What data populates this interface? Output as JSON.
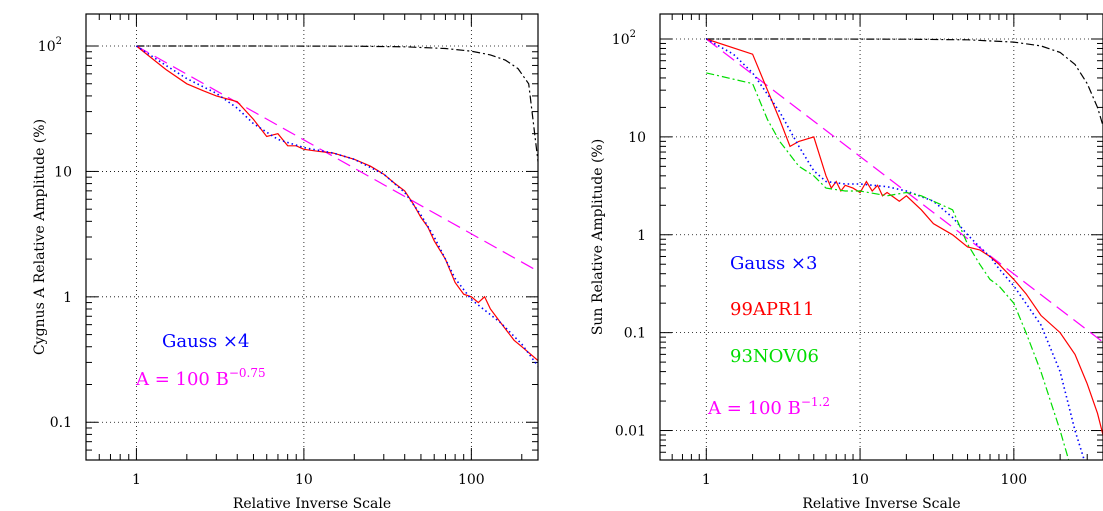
{
  "chart_data": [
    {
      "type": "line",
      "xlabel": "Relative Inverse Scale",
      "ylabel": "Cygnus A Relative Amplitude (%)",
      "xscale": "log",
      "yscale": "log",
      "xlim": [
        0.5,
        250
      ],
      "ylim": [
        0.05,
        180
      ],
      "grid": true,
      "xticks": [
        {
          "v": 1,
          "label": "1"
        },
        {
          "v": 10,
          "label": "10"
        },
        {
          "v": 100,
          "label": "100"
        }
      ],
      "yticks": [
        {
          "v": 0.1,
          "label": "0.1"
        },
        {
          "v": 1,
          "label": "1"
        },
        {
          "v": 10,
          "label": "10"
        },
        {
          "v": 100,
          "label": "10",
          "sup": "2"
        }
      ],
      "annotations": [
        {
          "name": "gauss-label",
          "text": "Gauss ×4",
          "color": "#0000ff"
        },
        {
          "name": "powerlaw-label",
          "text": "A = 100 B",
          "sup": "−0.75",
          "color": "#ff00ff"
        }
      ],
      "series": [
        {
          "style": "dash-dot",
          "color": "#000000",
          "x": [
            1,
            5,
            20,
            40,
            70,
            100,
            130,
            160,
            190,
            220,
            250
          ],
          "y": [
            100,
            100,
            99.6,
            98.5,
            95.5,
            91,
            85,
            77,
            66,
            50,
            12
          ]
        },
        {
          "style": "long-dash",
          "color": "#ff00ff",
          "x": [
            1,
            250
          ],
          "y": [
            100,
            1.6
          ]
        },
        {
          "style": "solid",
          "color": "#ff0000",
          "x": [
            1,
            1.5,
            2,
            2.5,
            3,
            4,
            5,
            6,
            7,
            8,
            9,
            10,
            12,
            15,
            20,
            25,
            30,
            35,
            40,
            45,
            50,
            55,
            60,
            70,
            80,
            90,
            100,
            110,
            120,
            130,
            150,
            180,
            200,
            250
          ],
          "y": [
            100,
            65,
            50,
            44,
            40,
            36,
            26,
            19,
            20,
            16,
            16,
            15,
            14.5,
            14,
            12.5,
            11,
            9.5,
            8,
            7,
            5.5,
            4.3,
            3.6,
            2.8,
            2,
            1.3,
            1.05,
            1.0,
            0.9,
            1.0,
            0.8,
            0.62,
            0.45,
            0.4,
            0.31
          ]
        },
        {
          "style": "dotted",
          "color": "#0000ff",
          "x": [
            1,
            1.5,
            2,
            3,
            4,
            5,
            7,
            10,
            15,
            20,
            30,
            40,
            50,
            60,
            70,
            80,
            100,
            150,
            200,
            250
          ],
          "y": [
            100,
            70,
            55,
            42,
            32,
            24,
            18,
            15.5,
            14,
            12.5,
            9.5,
            6.8,
            4.5,
            3.0,
            2.0,
            1.4,
            0.95,
            0.62,
            0.42,
            0.28
          ]
        }
      ]
    },
    {
      "type": "line",
      "xlabel": "Relative Inverse Scale",
      "ylabel": "Sun Relative Amplitude (%)",
      "xscale": "log",
      "yscale": "log",
      "xlim": [
        0.5,
        380
      ],
      "ylim": [
        0.005,
        180
      ],
      "grid": true,
      "xticks": [
        {
          "v": 1,
          "label": "1"
        },
        {
          "v": 10,
          "label": "10"
        },
        {
          "v": 100,
          "label": "100"
        }
      ],
      "yticks": [
        {
          "v": 0.01,
          "label": "0.01"
        },
        {
          "v": 0.1,
          "label": "0.1"
        },
        {
          "v": 1,
          "label": "1"
        },
        {
          "v": 10,
          "label": "10"
        },
        {
          "v": 100,
          "label": "10",
          "sup": "2"
        }
      ],
      "annotations": [
        {
          "name": "gauss-label",
          "text": "Gauss ×3",
          "color": "#0000ff"
        },
        {
          "name": "date1-label",
          "text": "99APR11",
          "color": "#ff0000"
        },
        {
          "name": "date2-label",
          "text": "93NOV06",
          "color": "#00dd00"
        },
        {
          "name": "powerlaw-label",
          "text": "A = 100 B",
          "sup": "−1.2",
          "color": "#ff00ff"
        }
      ],
      "series": [
        {
          "style": "dash-dot",
          "color": "#000000",
          "x": [
            1,
            5,
            20,
            50,
            100,
            150,
            200,
            250,
            300,
            350,
            380
          ],
          "y": [
            100,
            100,
            99.6,
            98,
            93,
            85,
            73,
            55,
            35,
            20,
            13
          ]
        },
        {
          "style": "long-dash",
          "color": "#ff00ff",
          "x": [
            1,
            380
          ],
          "y": [
            100,
            0.08
          ]
        },
        {
          "style": "solid",
          "color": "#ff0000",
          "name": "99APR11",
          "x": [
            1,
            2,
            2.5,
            3,
            3.5,
            4,
            5,
            6,
            6.5,
            7,
            7.5,
            8,
            9,
            10,
            11,
            12,
            13,
            14,
            15,
            18,
            20,
            25,
            30,
            40,
            50,
            60,
            70,
            80,
            100,
            120,
            150,
            200,
            250,
            300,
            350,
            380
          ],
          "y": [
            100,
            70,
            30,
            15,
            8,
            9,
            10,
            4,
            3.0,
            3.5,
            2.8,
            3.2,
            3.0,
            2.7,
            3.5,
            2.8,
            3.2,
            2.5,
            2.7,
            2.2,
            2.5,
            1.8,
            1.3,
            1.0,
            0.75,
            0.7,
            0.6,
            0.5,
            0.35,
            0.25,
            0.15,
            0.1,
            0.06,
            0.03,
            0.015,
            0.009
          ]
        },
        {
          "style": "dotted",
          "color": "#0000ff",
          "x": [
            1,
            1.5,
            2,
            3,
            4,
            5,
            6,
            8,
            10,
            15,
            20,
            30,
            40,
            50,
            60,
            70,
            80,
            100,
            150,
            200,
            250,
            300
          ],
          "y": [
            100,
            70,
            45,
            18,
            8,
            4.5,
            3.5,
            3.3,
            3.3,
            3.1,
            2.8,
            2.2,
            1.5,
            1.0,
            0.75,
            0.6,
            0.45,
            0.3,
            0.12,
            0.04,
            0.01,
            0.004
          ]
        },
        {
          "style": "dash-dot",
          "color": "#00dd00",
          "name": "93NOV06",
          "x": [
            1,
            2,
            2.5,
            3,
            4,
            5,
            6,
            8,
            10,
            15,
            20,
            25,
            30,
            40,
            50,
            60,
            70,
            80,
            100,
            120,
            150,
            200,
            250
          ],
          "y": [
            45,
            35,
            15,
            9,
            5,
            4,
            3.0,
            2.8,
            2.8,
            2.5,
            2.7,
            2.5,
            2.2,
            1.8,
            0.8,
            0.5,
            0.35,
            0.3,
            0.2,
            0.1,
            0.04,
            0.01,
            0.003
          ]
        }
      ]
    }
  ]
}
